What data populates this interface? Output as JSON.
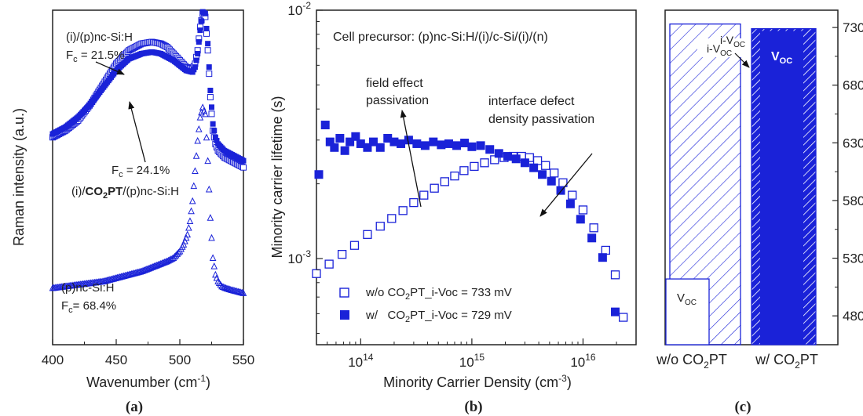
{
  "accent": "#1a22d8",
  "panel_a": {
    "chart_data": {
      "type": "scatter",
      "xlabel": "Wavenumber (cm-1)",
      "xlabel_main": "Wavenumber (cm",
      "xlabel_sup": "-1",
      "xlabel_close": ")",
      "ylabel": "Raman intensity (a.u.)",
      "xlim": [
        400,
        550
      ],
      "xticks": [
        "400",
        "450",
        "500",
        "550"
      ],
      "y_units": "arbitrary (a.u.)",
      "series": [
        {
          "name": "(i)/(p)nc-Si:H",
          "marker": "open-square",
          "x": [
            400,
            410,
            420,
            430,
            440,
            450,
            460,
            470,
            478,
            485,
            490,
            495,
            500,
            505,
            510,
            512,
            514,
            516,
            518,
            520,
            522,
            524,
            526,
            528,
            530,
            535,
            540,
            545,
            550
          ],
          "y": [
            0.62,
            0.64,
            0.67,
            0.72,
            0.78,
            0.84,
            0.88,
            0.9,
            0.905,
            0.9,
            0.89,
            0.87,
            0.85,
            0.83,
            0.825,
            0.84,
            0.88,
            0.95,
            0.99,
            0.98,
            0.88,
            0.74,
            0.64,
            0.6,
            0.58,
            0.56,
            0.55,
            0.54,
            0.53
          ]
        },
        {
          "name": "(i)/CO2PT/(p)nc-Si:H",
          "marker": "filled-square",
          "x": [
            400,
            410,
            420,
            430,
            440,
            450,
            460,
            470,
            478,
            485,
            490,
            495,
            500,
            505,
            510,
            512,
            514,
            516,
            518,
            520,
            522,
            524,
            526,
            528,
            530,
            535,
            540,
            545,
            550
          ],
          "y": [
            0.63,
            0.65,
            0.68,
            0.72,
            0.77,
            0.82,
            0.855,
            0.87,
            0.875,
            0.87,
            0.86,
            0.85,
            0.835,
            0.82,
            0.815,
            0.83,
            0.87,
            0.94,
            0.995,
            0.99,
            0.9,
            0.76,
            0.66,
            0.62,
            0.6,
            0.58,
            0.57,
            0.56,
            0.55
          ]
        },
        {
          "name": "(p)nc-Si:H",
          "marker": "open-triangle",
          "x": [
            400,
            410,
            420,
            430,
            440,
            450,
            460,
            470,
            480,
            490,
            495,
            500,
            503,
            506,
            508,
            510,
            512,
            514,
            516,
            518,
            520,
            522,
            524,
            526,
            528,
            530,
            533,
            536,
            540,
            545,
            550
          ],
          "y": [
            0.17,
            0.175,
            0.18,
            0.185,
            0.19,
            0.2,
            0.21,
            0.22,
            0.235,
            0.25,
            0.26,
            0.28,
            0.3,
            0.33,
            0.37,
            0.43,
            0.52,
            0.61,
            0.68,
            0.71,
            0.69,
            0.55,
            0.38,
            0.26,
            0.21,
            0.19,
            0.175,
            0.17,
            0.165,
            0.16,
            0.155
          ]
        }
      ],
      "annotations": [
        {
          "text": "(i)/(p)nc-Si:H"
        },
        {
          "text": "(i)/CO2PT/(p)nc-Si:H"
        },
        {
          "text": "(p)nc-Si:H"
        }
      ]
    },
    "label1": "(i)/(p)nc-Si:H",
    "fc1_main": "F",
    "fc1_sub": "c",
    "fc1_val": " = 21.5%",
    "fc2_main": "F",
    "fc2_sub": "c",
    "fc2_val": " = 24.1%",
    "label2_pre": "(i)/",
    "label2_bold_main": "CO",
    "label2_bold_sub": "2",
    "label2_bold_end": "PT",
    "label2_post": "/(p)nc-Si:H",
    "label3": "(p)nc-Si:H",
    "fc3_main": "F",
    "fc3_sub": "c",
    "fc3_val": "= 68.4%",
    "caption": "(a)"
  },
  "panel_b": {
    "chart_data": {
      "type": "scatter",
      "title": "Cell precursor: (p)nc-Si:H/(i)/c-Si/(i)/(n)",
      "xlabel": "Minority Carrier Density (cm-3)",
      "ylabel": "Minority carrier lifetime (s)",
      "x_scale": "log",
      "y_scale": "log",
      "xlim": [
        40000000000000.0,
        3e+16
      ],
      "ylim": [
        0.00045,
        0.01
      ],
      "xticks": [
        {
          "base": "10",
          "exp": "14"
        },
        {
          "base": "10",
          "exp": "15"
        },
        {
          "base": "10",
          "exp": "16"
        }
      ],
      "yticks": [
        {
          "base": "10",
          "exp": "-3"
        },
        {
          "base": "10",
          "exp": "-2"
        }
      ],
      "series": [
        {
          "name": "w/o CO2PT_i-Voc = 733 mV",
          "marker": "open-square",
          "x": [
            40000000000000.0,
            52000000000000.0,
            68000000000000.0,
            88000000000000.0,
            115000000000000.0,
            150000000000000.0,
            190000000000000.0,
            240000000000000.0,
            300000000000000.0,
            370000000000000.0,
            460000000000000.0,
            570000000000000.0,
            700000000000000.0,
            850000000000000.0,
            1050000000000000.0,
            1300000000000000.0,
            1600000000000000.0,
            1950000000000000.0,
            2350000000000000.0,
            2800000000000000.0,
            3300000000000000.0,
            3900000000000000.0,
            4600000000000000.0,
            5500000000000000.0,
            6600000000000000.0,
            8000000000000000.0,
            1e+16,
            1.25e+16,
            1.6e+16,
            1.95e+16,
            2.3e+16
          ],
          "y": [
            0.00087,
            0.00095,
            0.00104,
            0.00113,
            0.00125,
            0.00135,
            0.00145,
            0.00156,
            0.00168,
            0.0018,
            0.00192,
            0.00204,
            0.00215,
            0.00226,
            0.00235,
            0.00243,
            0.0025,
            0.00255,
            0.00258,
            0.00258,
            0.00255,
            0.00248,
            0.00237,
            0.00221,
            0.00202,
            0.0018,
            0.00157,
            0.00133,
            0.00108,
            0.00086,
            0.00058
          ]
        },
        {
          "name": "w/ CO2PT_i-Voc = 729 mV",
          "marker": "filled-square",
          "x": [
            42000000000000.0,
            48000000000000.0,
            53000000000000.0,
            58000000000000.0,
            65000000000000.0,
            72000000000000.0,
            80000000000000.0,
            90000000000000.0,
            100000000000000.0,
            115000000000000.0,
            130000000000000.0,
            150000000000000.0,
            175000000000000.0,
            200000000000000.0,
            230000000000000.0,
            270000000000000.0,
            320000000000000.0,
            380000000000000.0,
            450000000000000.0,
            530000000000000.0,
            620000000000000.0,
            730000000000000.0,
            860000000000000.0,
            1000000000000000.0,
            1200000000000000.0,
            1450000000000000.0,
            1750000000000000.0,
            2100000000000000.0,
            2500000000000000.0,
            3000000000000000.0,
            3600000000000000.0,
            4300000000000000.0,
            5200000000000000.0,
            6300000000000000.0,
            7700000000000000.0,
            9500000000000000.0,
            1.2e+16,
            1.5e+16,
            1.95e+16
          ],
          "y": [
            0.00218,
            0.00345,
            0.00295,
            0.0028,
            0.00305,
            0.00272,
            0.00295,
            0.0031,
            0.0029,
            0.0028,
            0.00295,
            0.0028,
            0.00305,
            0.00295,
            0.0029,
            0.003,
            0.0029,
            0.00285,
            0.00295,
            0.00287,
            0.0029,
            0.00285,
            0.00292,
            0.00282,
            0.00285,
            0.00275,
            0.00265,
            0.00258,
            0.00252,
            0.00243,
            0.00232,
            0.00218,
            0.00205,
            0.00188,
            0.00166,
            0.00144,
            0.00121,
            0.00101,
            0.00061
          ]
        }
      ],
      "annotations": [
        {
          "text": "field effect passivation"
        },
        {
          "text": "interface defect density passivation"
        }
      ]
    },
    "title": "Cell precursor: (p)nc-Si:H/(i)/c-Si/(i)/(n)",
    "ann1_line1": "field effect",
    "ann1_line2": "passivation",
    "ann2_line1": "interface defect",
    "ann2_line2": "density passivation",
    "ylabel": "Minority carrier lifetime (s)",
    "xlabel_main": "Minority Carrier Density (cm",
    "xlabel_sup": "-3",
    "xlabel_close": ")",
    "legend1_pre": "w/o CO",
    "legend1_sub": "2",
    "legend1_post": "PT_i-Voc = 733 mV",
    "legend2_pre": "w/   CO",
    "legend2_sub": "2",
    "legend2_post": "PT_i-Voc = 729 mV",
    "caption": "(b)"
  },
  "panel_c": {
    "chart_data": {
      "type": "bar",
      "categories": [
        "w/o CO2PT",
        "w/ CO2PT"
      ],
      "series": [
        {
          "name": "i-VOC",
          "values": [
            733,
            729
          ]
        },
        {
          "name": "VOC",
          "values": [
            512,
            727
          ]
        }
      ],
      "ylim": [
        455,
        745
      ],
      "yticks": [
        "480",
        "530",
        "580",
        "630",
        "680",
        "730"
      ],
      "y_axis": "right"
    },
    "cat1_pre": "w/o CO",
    "cat1_sub": "2",
    "cat1_post": "PT",
    "cat2_pre": "w/ CO",
    "cat2_sub": "2",
    "cat2_post": "PT",
    "ivoc1_main": "i-V",
    "ivoc1_sub": "OC",
    "ivoc2_main": "i-V",
    "ivoc2_sub": "OC",
    "voc1_main": "V",
    "voc1_sub": "OC",
    "voc2_main": "V",
    "voc2_sub": "OC",
    "caption": "(c)"
  }
}
